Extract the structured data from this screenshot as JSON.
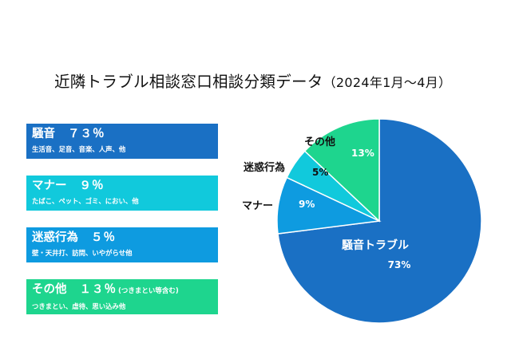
{
  "title": "近隣トラブル相談窓口相談分類データ",
  "title_period": "（2024年1月～4月）",
  "cards": [
    {
      "heading": "騒音",
      "percent": "７３％",
      "note": "",
      "description": "生活音、足音、音楽、人声、他",
      "color": "#1a70c4"
    },
    {
      "heading": "マナー",
      "percent": "９％",
      "note": "",
      "description": "たばこ、ペット、ゴミ、におい、他",
      "color": "#11c9dc"
    },
    {
      "heading": "迷惑行為",
      "percent": "５％",
      "note": "",
      "description": "壁・天井打、訪問、いやがらせ他",
      "color": "#0e9be0"
    },
    {
      "heading": "その他",
      "percent": "１３％",
      "note": "(つきまとい等含む)",
      "description": "つきまとい、虐待、思い込み他",
      "color": "#1ed58e"
    }
  ],
  "chart_data": {
    "type": "pie",
    "slices": [
      {
        "label": "騒音トラブル",
        "value": 73,
        "value_label": "73%",
        "color": "#1a70c4"
      },
      {
        "label": "マナー",
        "value": 9,
        "value_label": "9%",
        "color": "#0e9be0"
      },
      {
        "label": "迷惑行為",
        "value": 5,
        "value_label": "5%",
        "color": "#11c9dc"
      },
      {
        "label": "その他",
        "value": 13,
        "value_label": "13%",
        "color": "#1ed58e"
      }
    ]
  }
}
